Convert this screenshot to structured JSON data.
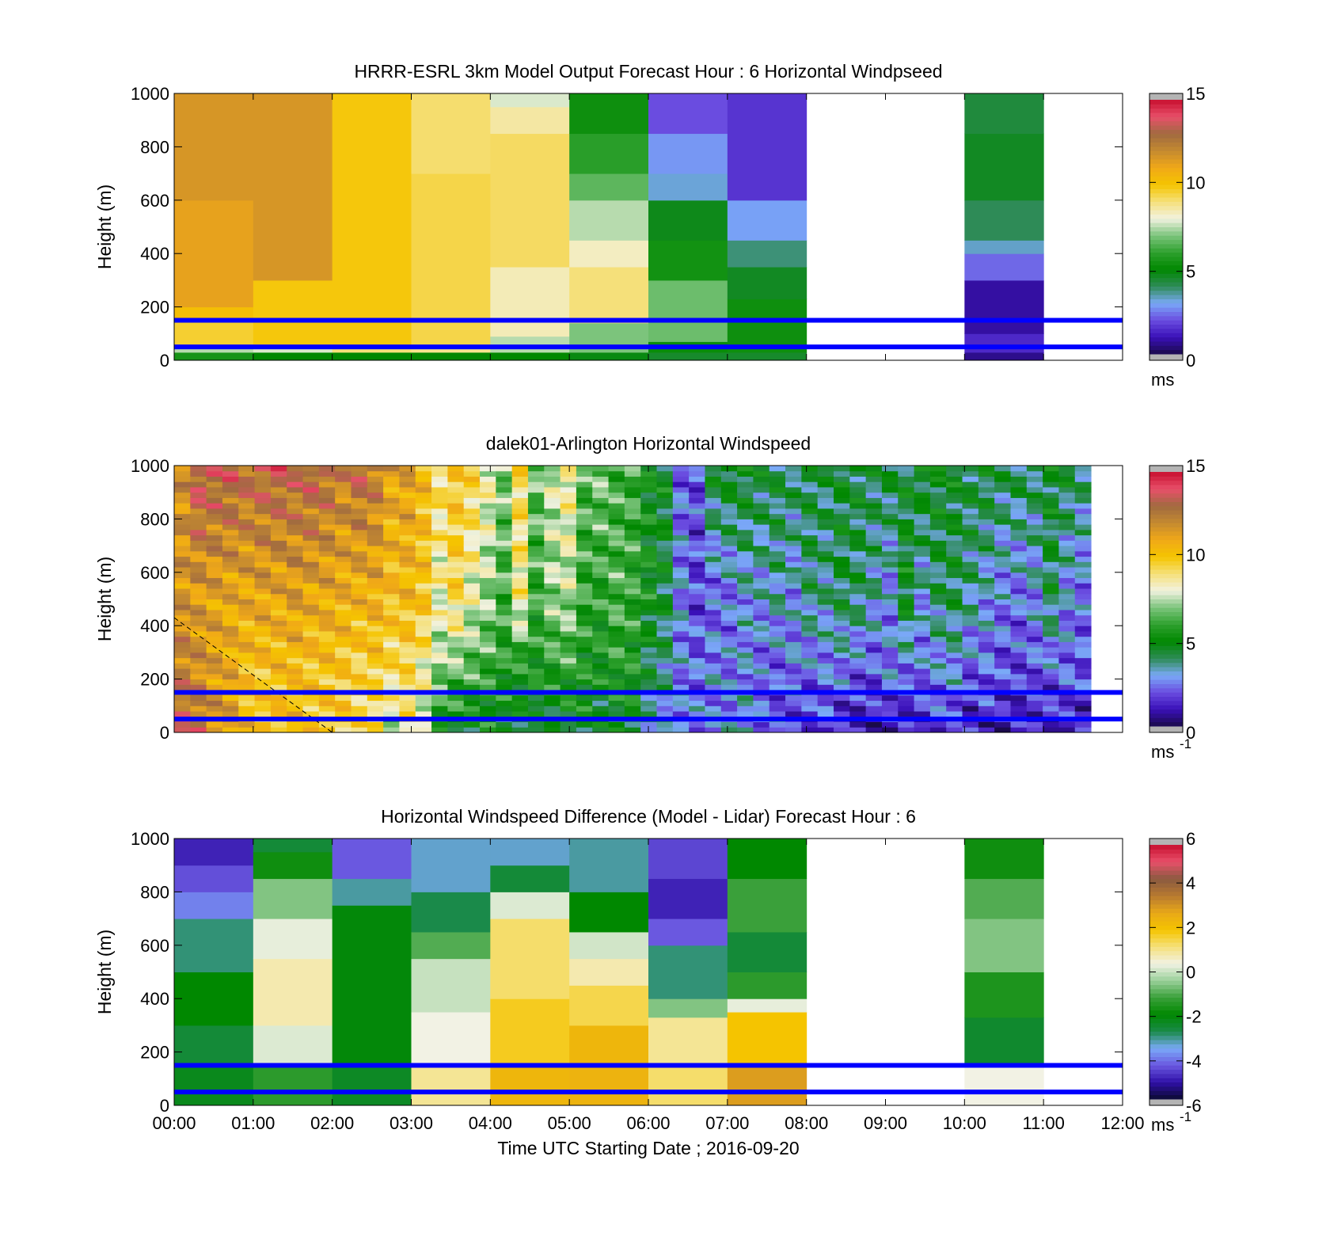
{
  "colors": {
    "hoursmarker": "#0000ff",
    "speed_colormap": [
      "#1a0a4a",
      "#3a10b8",
      "#6a4ce0",
      "#7aaaf8",
      "#2e8b57",
      "#008800",
      "#2ea02e",
      "#7cc47c",
      "#f2f2e0",
      "#f5e07a",
      "#f5c400",
      "#f0a818",
      "#c48a30",
      "#a06a40",
      "#e8506a",
      "#c81030"
    ],
    "diff_colormap": [
      "#0a0a30",
      "#3010a8",
      "#6a58e0",
      "#7aaaf8",
      "#1a8a4a",
      "#008800",
      "#3aa03a",
      "#9ad09a",
      "#f2f2e4",
      "#f5e07a",
      "#f5c400",
      "#e8a818",
      "#b87a30",
      "#8a5a40",
      "#e8506a",
      "#c81030"
    ],
    "missing": "#b4b4b4"
  },
  "chart_data": [
    {
      "type": "heatmap",
      "title": "HRRR-ESRL 3km Model Output   Forecast Hour : 6 Horizontal Windpseed",
      "ylabel": "Height (m)",
      "xlabel": "",
      "ylim": [
        0,
        1000
      ],
      "xlim": [
        0,
        12
      ],
      "yticks": [
        "0",
        "200",
        "400",
        "600",
        "800",
        "1000"
      ],
      "xticks": [],
      "colorbar": {
        "range": [
          0,
          15
        ],
        "ticks": [
          "0",
          "5",
          "10",
          "15"
        ],
        "unit": "ms",
        "unit_sup": ""
      },
      "reference_lines_m": [
        50,
        150
      ],
      "columns": [
        {
          "t0": 0,
          "t1": 1,
          "levels": [
            [
              0,
              30,
              5.5
            ],
            [
              30,
              60,
              7.5
            ],
            [
              60,
              150,
              9.6
            ],
            [
              150,
              200,
              10.2
            ],
            [
              200,
              600,
              11.2
            ],
            [
              600,
              1000,
              11.6
            ]
          ]
        },
        {
          "t0": 1,
          "t1": 2,
          "levels": [
            [
              0,
              30,
              5.0
            ],
            [
              30,
              60,
              7.8
            ],
            [
              60,
              300,
              9.9
            ],
            [
              300,
              1000,
              11.6
            ]
          ]
        },
        {
          "t0": 2,
          "t1": 3,
          "levels": [
            [
              0,
              30,
              5.0
            ],
            [
              30,
              60,
              9.0
            ],
            [
              60,
              1000,
              9.9
            ]
          ]
        },
        {
          "t0": 3,
          "t1": 4,
          "levels": [
            [
              0,
              30,
              5.0
            ],
            [
              30,
              60,
              8.8
            ],
            [
              60,
              700,
              9.4
            ],
            [
              700,
              1000,
              9.1
            ]
          ]
        },
        {
          "t0": 4,
          "t1": 5,
          "levels": [
            [
              0,
              30,
              5.0
            ],
            [
              30,
              90,
              7.5
            ],
            [
              90,
              350,
              8.4
            ],
            [
              350,
              850,
              9.2
            ],
            [
              850,
              950,
              8.6
            ],
            [
              950,
              1000,
              7.8
            ]
          ]
        },
        {
          "t0": 5,
          "t1": 6,
          "levels": [
            [
              0,
              30,
              4.8
            ],
            [
              30,
              140,
              7.0
            ],
            [
              140,
              350,
              9.0
            ],
            [
              350,
              450,
              8.3
            ],
            [
              450,
              600,
              7.5
            ],
            [
              600,
              700,
              6.6
            ],
            [
              700,
              850,
              5.9
            ],
            [
              850,
              1000,
              5.3
            ]
          ]
        },
        {
          "t0": 6,
          "t1": 7,
          "levels": [
            [
              0,
              30,
              4.5
            ],
            [
              30,
              70,
              5.2
            ],
            [
              70,
              300,
              6.8
            ],
            [
              300,
              450,
              5.4
            ],
            [
              450,
              600,
              4.7
            ],
            [
              600,
              700,
              3.2
            ],
            [
              700,
              850,
              2.8
            ],
            [
              850,
              1000,
              2.0
            ]
          ]
        },
        {
          "t0": 7,
          "t1": 8,
          "levels": [
            [
              0,
              30,
              4.5
            ],
            [
              30,
              230,
              5.3
            ],
            [
              230,
              350,
              4.6
            ],
            [
              350,
              450,
              3.8
            ],
            [
              450,
              600,
              2.9
            ],
            [
              600,
              1000,
              1.6
            ]
          ]
        },
        {
          "t0": 10,
          "t1": 11,
          "levels": [
            [
              0,
              30,
              0.6
            ],
            [
              30,
              100,
              1.4
            ],
            [
              100,
              300,
              0.8
            ],
            [
              300,
              400,
              2.3
            ],
            [
              400,
              450,
              3.3
            ],
            [
              450,
              600,
              4.0
            ],
            [
              600,
              850,
              4.6
            ],
            [
              850,
              1000,
              4.3
            ]
          ]
        }
      ]
    },
    {
      "type": "heatmap",
      "title": "dalek01-Arlington  Horizontal Windspeed",
      "ylabel": "Height (m)",
      "xlabel": "",
      "ylim": [
        0,
        1000
      ],
      "xlim": [
        0,
        12
      ],
      "yticks": [
        "0",
        "200",
        "400",
        "600",
        "800",
        "1000"
      ],
      "xticks": [],
      "colorbar": {
        "range": [
          0,
          15
        ],
        "ticks": [
          "0",
          "5",
          "10",
          "15"
        ],
        "unit": "ms",
        "unit_sup": "-1"
      },
      "reference_lines_m": [
        50,
        150
      ],
      "lidar_profiles_mps": [
        [
          13.2,
          12.4,
          11.6,
          11.8
        ],
        [
          13.0,
          12.0,
          11.4,
          13.6
        ],
        [
          12.0,
          11.4,
          11.2,
          13.4
        ],
        [
          11.6,
          11.0,
          11.0,
          13.4
        ],
        [
          10.4,
          10.2,
          11.0,
          13.0
        ],
        [
          10.0,
          10.0,
          11.2,
          13.2
        ],
        [
          10.0,
          10.2,
          11.0,
          13.4
        ],
        [
          10.2,
          10.2,
          11.4,
          13.0
        ],
        [
          10.0,
          9.9,
          11.0,
          13.4
        ],
        [
          10.0,
          10.0,
          11.0,
          13.0
        ],
        [
          9.8,
          9.8,
          10.8,
          12.4
        ],
        [
          9.4,
          9.4,
          10.6,
          13.2
        ],
        [
          9.0,
          9.6,
          10.8,
          12.6
        ],
        [
          7.0,
          9.0,
          10.2,
          11.2
        ],
        [
          8.6,
          9.2,
          10.4,
          11.4
        ],
        [
          7.6,
          8.2,
          10.0,
          10.4
        ],
        [
          5.2,
          7.0,
          8.2,
          9.2
        ],
        [
          5.0,
          6.4,
          9.4,
          10.0
        ],
        [
          4.6,
          6.2,
          8.0,
          9.6
        ],
        [
          5.0,
          6.0,
          7.2,
          8.4
        ],
        [
          4.4,
          5.6,
          6.2,
          7.0
        ],
        [
          4.6,
          5.0,
          8.6,
          9.4
        ],
        [
          4.2,
          5.4,
          6.0,
          6.8
        ],
        [
          4.4,
          5.6,
          7.2,
          7.8
        ],
        [
          4.6,
          5.8,
          7.4,
          8.8
        ],
        [
          4.8,
          5.4,
          6.0,
          6.4
        ],
        [
          4.2,
          5.2,
          5.8,
          7.0
        ],
        [
          4.4,
          5.6,
          6.4,
          6.2
        ],
        [
          4.6,
          5.4,
          6.0,
          6.2
        ],
        [
          3.0,
          4.0,
          5.2,
          5.0
        ],
        [
          2.8,
          3.6,
          4.4,
          4.8
        ],
        [
          3.0,
          2.6,
          2.8,
          2.2
        ],
        [
          2.6,
          2.4,
          1.8,
          2.0
        ],
        [
          2.4,
          2.8,
          2.2,
          4.6
        ],
        [
          2.8,
          2.6,
          2.4,
          5.0
        ],
        [
          3.2,
          2.8,
          3.0,
          4.8
        ],
        [
          2.4,
          2.2,
          3.0,
          4.4
        ],
        [
          2.2,
          2.0,
          3.4,
          4.4
        ],
        [
          1.8,
          2.6,
          2.8,
          4.2
        ],
        [
          1.6,
          2.2,
          3.8,
          4.4
        ],
        [
          1.8,
          2.4,
          3.6,
          4.2
        ],
        [
          1.0,
          2.4,
          4.2,
          4.6
        ],
        [
          0.8,
          2.0,
          4.0,
          4.4
        ],
        [
          1.0,
          1.8,
          3.4,
          4.2
        ],
        [
          0.8,
          2.6,
          2.6,
          4.6
        ],
        [
          1.2,
          2.2,
          4.8,
          4.4
        ],
        [
          1.4,
          2.4,
          3.0,
          5.0
        ],
        [
          1.6,
          2.6,
          4.0,
          4.8
        ],
        [
          1.4,
          2.8,
          4.2,
          4.6
        ],
        [
          1.0,
          2.0,
          3.6,
          4.4
        ],
        [
          1.2,
          2.2,
          3.0,
          4.6
        ],
        [
          1.0,
          1.8,
          2.6,
          4.2
        ],
        [
          1.2,
          1.8,
          2.4,
          4.4
        ],
        [
          1.4,
          2.0,
          2.8,
          4.2
        ],
        [
          1.2,
          2.0,
          4.2,
          4.6
        ],
        [
          0.8,
          2.2,
          2.8,
          4.4
        ],
        [
          1.0,
          2.0,
          2.4,
          4.0
        ]
      ],
      "profile_heights_m": [
        0,
        200,
        500,
        1000
      ],
      "data_end_hour": 11.6
    },
    {
      "type": "heatmap",
      "title": "Horizontal Windspeed Difference (Model - Lidar) Forecast Hour : 6",
      "ylabel": "Height (m)",
      "xlabel": "Time UTC  Starting Date ; 2016-09-20",
      "ylim": [
        0,
        1000
      ],
      "xlim": [
        0,
        12
      ],
      "yticks": [
        "0",
        "200",
        "400",
        "600",
        "800",
        "1000"
      ],
      "xticks": [
        "00:00",
        "01:00",
        "02:00",
        "03:00",
        "04:00",
        "05:00",
        "06:00",
        "07:00",
        "08:00",
        "09:00",
        "10:00",
        "11:00",
        "12:00"
      ],
      "colorbar": {
        "range": [
          -6,
          6
        ],
        "ticks": [
          "-6",
          "-4",
          "-2",
          "0",
          "2",
          "4",
          "6"
        ],
        "unit": "ms",
        "unit_sup": "-1"
      },
      "reference_lines_m": [
        50,
        150
      ],
      "columns": [
        {
          "t0": 0,
          "t1": 1,
          "levels": [
            [
              0,
              150,
              -2.3
            ],
            [
              150,
              300,
              -2.6
            ],
            [
              300,
              500,
              -2.0
            ],
            [
              500,
              700,
              -3.0
            ],
            [
              700,
              800,
              -4.0
            ],
            [
              800,
              900,
              -4.5
            ],
            [
              900,
              1000,
              -5.0
            ]
          ]
        },
        {
          "t0": 1,
          "t1": 2,
          "levels": [
            [
              0,
              150,
              -1.4
            ],
            [
              150,
              300,
              0.2
            ],
            [
              300,
              550,
              0.8
            ],
            [
              550,
              700,
              0.3
            ],
            [
              700,
              850,
              -0.6
            ],
            [
              850,
              950,
              -1.8
            ],
            [
              950,
              1000,
              -2.6
            ]
          ]
        },
        {
          "t0": 2,
          "t1": 3,
          "levels": [
            [
              0,
              150,
              -2.4
            ],
            [
              150,
              750,
              -2.1
            ],
            [
              750,
              850,
              -3.2
            ],
            [
              850,
              1000,
              -4.4
            ]
          ]
        },
        {
          "t0": 3,
          "t1": 4,
          "levels": [
            [
              0,
              150,
              1.0
            ],
            [
              150,
              350,
              0.4
            ],
            [
              350,
              550,
              0.0
            ],
            [
              550,
              650,
              -1.0
            ],
            [
              650,
              800,
              -2.8
            ],
            [
              800,
              1000,
              -3.4
            ]
          ]
        },
        {
          "t0": 4,
          "t1": 5,
          "levels": [
            [
              0,
              150,
              2.4
            ],
            [
              150,
              400,
              1.8
            ],
            [
              400,
              700,
              1.3
            ],
            [
              700,
              800,
              0.2
            ],
            [
              800,
              900,
              -2.6
            ],
            [
              900,
              1000,
              -3.4
            ]
          ]
        },
        {
          "t0": 5,
          "t1": 6,
          "levels": [
            [
              0,
              150,
              2.5
            ],
            [
              150,
              300,
              2.4
            ],
            [
              300,
              450,
              1.5
            ],
            [
              450,
              550,
              0.8
            ],
            [
              550,
              650,
              0.1
            ],
            [
              650,
              800,
              -2.0
            ],
            [
              800,
              1000,
              -3.2
            ]
          ]
        },
        {
          "t0": 6,
          "t1": 7,
          "levels": [
            [
              0,
              150,
              1.3
            ],
            [
              150,
              330,
              1.0
            ],
            [
              330,
              400,
              -0.6
            ],
            [
              400,
              600,
              -3.0
            ],
            [
              600,
              700,
              -4.4
            ],
            [
              700,
              850,
              -5.0
            ],
            [
              850,
              1000,
              -4.6
            ]
          ]
        },
        {
          "t0": 7,
          "t1": 8,
          "levels": [
            [
              0,
              150,
              3.0
            ],
            [
              150,
              350,
              2.0
            ],
            [
              350,
              400,
              0.3
            ],
            [
              400,
              500,
              -1.4
            ],
            [
              500,
              650,
              -2.6
            ],
            [
              650,
              850,
              -1.2
            ],
            [
              850,
              1000,
              -2.0
            ]
          ]
        },
        {
          "t0": 10,
          "t1": 11,
          "levels": [
            [
              0,
              150,
              0.4
            ],
            [
              150,
              330,
              -2.5
            ],
            [
              330,
              500,
              -1.6
            ],
            [
              500,
              700,
              -0.6
            ],
            [
              700,
              850,
              -1.0
            ],
            [
              850,
              1000,
              -1.8
            ]
          ]
        }
      ]
    }
  ]
}
